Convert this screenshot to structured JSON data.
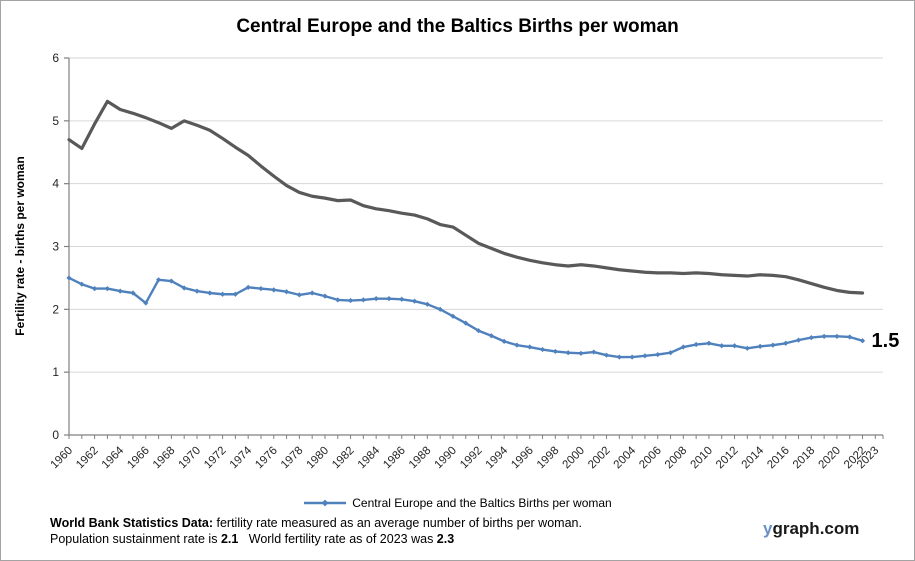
{
  "title": "Central Europe and the Baltics Births per woman",
  "y_axis_label": "Fertility rate - births per woman",
  "watermark": {
    "prefix": "y",
    "suffix": "graph.com"
  },
  "footer": {
    "line1_bold": "World Bank Statistics Data:",
    "line1_rest": " fertility rate measured as an average number of births per woman.",
    "line2_part1": "Population sustainment rate is ",
    "line2_bold1": "2.1",
    "line2_part2": "   World fertility rate as of 2023 was ",
    "line2_bold2": "2.3"
  },
  "colors": {
    "series_blue": "#4F81BD",
    "series_gray": "#595959",
    "gridline": "#D6D6D6",
    "axis": "#808080",
    "tick_text": "#262626"
  },
  "chart_data": {
    "type": "line",
    "title": "Central Europe and the Baltics Births per woman",
    "xlabel": "",
    "ylabel": "Fertility rate - births per woman",
    "ylim": [
      0,
      6
    ],
    "yticks": [
      0,
      1,
      2,
      3,
      4,
      5,
      6
    ],
    "xtick_labels": [
      "1960",
      "1962",
      "1964",
      "1966",
      "1968",
      "1970",
      "1972",
      "1974",
      "1976",
      "1978",
      "1980",
      "1982",
      "1984",
      "1986",
      "1988",
      "1990",
      "1992",
      "1994",
      "1996",
      "1998",
      "2000",
      "2002",
      "2004",
      "2006",
      "2008",
      "2010",
      "2012",
      "2014",
      "2016",
      "2018",
      "2020",
      "2022",
      "2023"
    ],
    "grid": true,
    "legend_position": "bottom",
    "x": [
      1960,
      1961,
      1962,
      1963,
      1964,
      1965,
      1966,
      1967,
      1968,
      1969,
      1970,
      1971,
      1972,
      1973,
      1974,
      1975,
      1976,
      1977,
      1978,
      1979,
      1980,
      1981,
      1982,
      1983,
      1984,
      1985,
      1986,
      1987,
      1988,
      1989,
      1990,
      1991,
      1992,
      1993,
      1994,
      1995,
      1996,
      1997,
      1998,
      1999,
      2000,
      2001,
      2002,
      2003,
      2004,
      2005,
      2006,
      2007,
      2008,
      2009,
      2010,
      2011,
      2012,
      2013,
      2014,
      2015,
      2016,
      2017,
      2018,
      2019,
      2020,
      2021,
      2022
    ],
    "series": [
      {
        "name": "Central Europe and the Baltics Births per woman",
        "color": "#4F81BD",
        "marker": true,
        "legend_visible": true,
        "values": [
          2.5,
          2.4,
          2.33,
          2.33,
          2.29,
          2.26,
          2.1,
          2.47,
          2.45,
          2.34,
          2.29,
          2.26,
          2.24,
          2.24,
          2.35,
          2.33,
          2.31,
          2.28,
          2.23,
          2.26,
          2.21,
          2.15,
          2.14,
          2.15,
          2.17,
          2.17,
          2.16,
          2.13,
          2.08,
          2.0,
          1.89,
          1.78,
          1.66,
          1.58,
          1.49,
          1.43,
          1.4,
          1.36,
          1.33,
          1.31,
          1.3,
          1.32,
          1.27,
          1.24,
          1.24,
          1.26,
          1.28,
          1.31,
          1.4,
          1.44,
          1.46,
          1.42,
          1.42,
          1.38,
          1.41,
          1.43,
          1.46,
          1.51,
          1.55,
          1.57,
          1.57,
          1.56,
          1.5
        ]
      },
      {
        "name": "World fertility rate",
        "color": "#595959",
        "marker": false,
        "legend_visible": false,
        "values": [
          4.7,
          4.56,
          4.95,
          5.31,
          5.18,
          5.12,
          5.05,
          4.97,
          4.88,
          5.0,
          4.93,
          4.85,
          4.72,
          4.58,
          4.45,
          4.28,
          4.12,
          3.97,
          3.86,
          3.8,
          3.77,
          3.73,
          3.74,
          3.65,
          3.6,
          3.57,
          3.53,
          3.5,
          3.44,
          3.35,
          3.31,
          3.18,
          3.05,
          2.97,
          2.89,
          2.83,
          2.78,
          2.74,
          2.71,
          2.69,
          2.71,
          2.69,
          2.66,
          2.63,
          2.61,
          2.59,
          2.58,
          2.58,
          2.57,
          2.58,
          2.57,
          2.55,
          2.54,
          2.53,
          2.55,
          2.54,
          2.52,
          2.47,
          2.41,
          2.35,
          2.3,
          2.27,
          2.26
        ]
      }
    ],
    "end_label": {
      "series": 0,
      "text": "1.5"
    }
  }
}
